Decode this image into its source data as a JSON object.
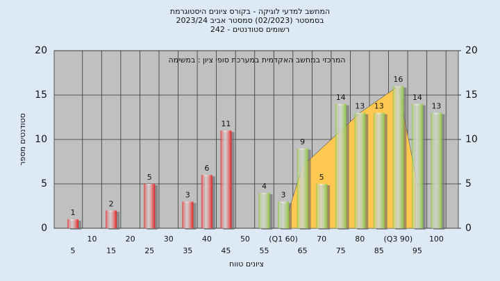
{
  "chart_data": {
    "type": "bar",
    "title": "המחשב למדעי לוגיקה - בקורס ציונים היסטוגרמת",
    "subtitle": "בסמסטר (02/2023) סמסטר אביב 2023/24",
    "subtitle2": "רשומים סטודנטים - 242",
    "annotation": "המרכזי במחשב האקדמית במערכת סופי ציון : במשימה",
    "y_label": "סטודנטים מספר",
    "x_label": "ציונים טווח",
    "categories": [
      "5",
      "10",
      "15",
      "20",
      "25",
      "30",
      "35",
      "40",
      "45",
      "50",
      "55",
      "(Q1 60)",
      "65",
      "70",
      "75",
      "80",
      "85",
      "(Q3 90)",
      "95",
      "100"
    ],
    "values": [
      1,
      0,
      2,
      0,
      5,
      0,
      3,
      6,
      11,
      0,
      4,
      3,
      9,
      5,
      14,
      13,
      13,
      16,
      14,
      13
    ],
    "value_labels": [
      "1",
      null,
      "2",
      null,
      "5",
      null,
      "3",
      "6",
      "11",
      null,
      "4",
      "3",
      "9",
      "5",
      "14",
      "13",
      "13",
      "16",
      "14",
      "13"
    ],
    "colors": [
      "#e02020",
      "#e02020",
      "#e02020",
      "#e02020",
      "#e02020",
      "#e02020",
      "#e02020",
      "#e02020",
      "#e02020",
      "#e02020",
      "#8cc040",
      "#8cc040",
      "#8cc040",
      "#8cc040",
      "#8cc040",
      "#8cc040",
      "#8cc040",
      "#8cc040",
      "#8cc040",
      "#8cc040"
    ],
    "area": {
      "color": "#ffc850",
      "x": [
        60,
        65,
        70,
        75,
        80,
        85,
        90,
        95
      ],
      "values": [
        0,
        7,
        9,
        11,
        13,
        14.5,
        16,
        5
      ]
    },
    "ylim": [
      0,
      20
    ],
    "yticks": [
      0,
      5,
      10,
      15,
      20
    ],
    "y2lim": [
      0,
      20
    ],
    "y2ticks": [
      0,
      5,
      10,
      15,
      20
    ],
    "grid": true
  }
}
